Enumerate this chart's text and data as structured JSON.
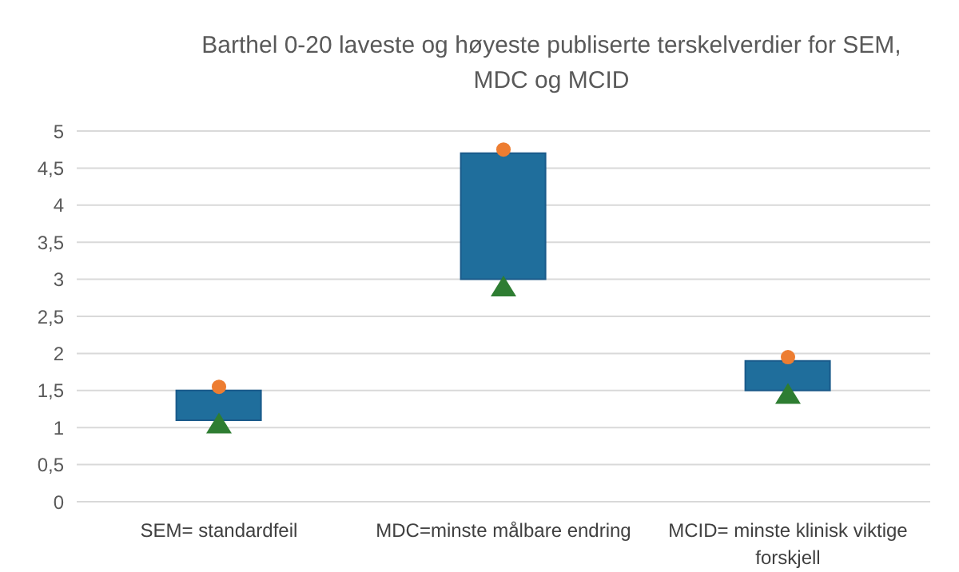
{
  "chart_data": {
    "type": "bar",
    "title": "Barthel 0-20 laveste og høyeste publiserte terskelverdier for SEM, MDC og MCID",
    "categories": [
      "SEM= standardfeil",
      "MDC=minste målbare endring",
      "MCID= minste klinisk viktige forskjell"
    ],
    "series": [
      {
        "color": "#1f6e9c",
        "values": [
          0.4,
          1.7,
          0.4
        ],
        "base": [
          1.1,
          3.0,
          1.5
        ]
      },
      {
        "type": "scatter",
        "marker": "circle",
        "color": "#ed7d31",
        "values": [
          1.55,
          4.75,
          1.95
        ]
      },
      {
        "type": "scatter",
        "marker": "triangle",
        "color": "#2e7d32",
        "values": [
          1.05,
          2.9,
          1.45
        ]
      }
    ],
    "ylim": [
      0,
      5
    ],
    "yticks": [
      0,
      {
        "value": 0.5,
        "label": "0,5"
      },
      1,
      {
        "value": 1.5,
        "label": "1,5"
      },
      2,
      {
        "value": 2.5,
        "label": "2,5"
      },
      3,
      {
        "value": 3.5,
        "label": "3,5"
      },
      4,
      {
        "value": 4.5,
        "label": "4,5"
      },
      5
    ],
    "grid": "y",
    "legend": false
  }
}
